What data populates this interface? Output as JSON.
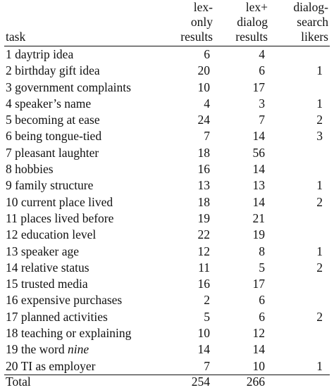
{
  "header": {
    "task": "task",
    "col1": [
      "lex-",
      "only",
      "results"
    ],
    "col2": [
      "lex+",
      "dialog",
      "results"
    ],
    "col3": [
      "dialog-",
      "search",
      "likers"
    ]
  },
  "rows": [
    {
      "num": "1",
      "task": "daytrip idea",
      "lex_only": "6",
      "lex_dialog": "4",
      "likers": ""
    },
    {
      "num": "2",
      "task": "birthday gift idea",
      "lex_only": "20",
      "lex_dialog": "6",
      "likers": "1"
    },
    {
      "num": "3",
      "task": "government complaints",
      "lex_only": "10",
      "lex_dialog": "17",
      "likers": ""
    },
    {
      "num": "4",
      "task": "speaker’s name",
      "lex_only": "4",
      "lex_dialog": "3",
      "likers": "1"
    },
    {
      "num": "5",
      "task": "becoming at ease",
      "lex_only": "24",
      "lex_dialog": "7",
      "likers": "2"
    },
    {
      "num": "6",
      "task": "being tongue-tied",
      "lex_only": "7",
      "lex_dialog": "14",
      "likers": "3"
    },
    {
      "num": "7",
      "task": "pleasant laughter",
      "lex_only": "18",
      "lex_dialog": "56",
      "likers": ""
    },
    {
      "num": "8",
      "task": "hobbies",
      "lex_only": "16",
      "lex_dialog": "14",
      "likers": ""
    },
    {
      "num": "9",
      "task": "family structure",
      "lex_only": "13",
      "lex_dialog": "13",
      "likers": "1"
    },
    {
      "num": "10",
      "task": "current place lived",
      "lex_only": "18",
      "lex_dialog": "14",
      "likers": "2"
    },
    {
      "num": "11",
      "task": "places lived before",
      "lex_only": "19",
      "lex_dialog": "21",
      "likers": ""
    },
    {
      "num": "12",
      "task": "education level",
      "lex_only": "22",
      "lex_dialog": "19",
      "likers": ""
    },
    {
      "num": "13",
      "task": "speaker age",
      "lex_only": "12",
      "lex_dialog": "8",
      "likers": "1"
    },
    {
      "num": "14",
      "task": "relative status",
      "lex_only": "11",
      "lex_dialog": "5",
      "likers": "2"
    },
    {
      "num": "15",
      "task": "trusted media",
      "lex_only": "16",
      "lex_dialog": "17",
      "likers": ""
    },
    {
      "num": "16",
      "task": "expensive purchases",
      "lex_only": "2",
      "lex_dialog": "6",
      "likers": ""
    },
    {
      "num": "17",
      "task": "planned activities",
      "lex_only": "5",
      "lex_dialog": "6",
      "likers": "2"
    },
    {
      "num": "18",
      "task": "teaching or explaining",
      "lex_only": "10",
      "lex_dialog": "12",
      "likers": ""
    },
    {
      "num": "19",
      "task": "the word ",
      "task_italic": "nine",
      "lex_only": "14",
      "lex_dialog": "14",
      "likers": ""
    },
    {
      "num": "20",
      "task": "TI as employer",
      "lex_only": "7",
      "lex_dialog": "10",
      "likers": "1"
    }
  ],
  "total": {
    "label": "Total",
    "lex_only": "254",
    "lex_dialog": "266",
    "likers": ""
  }
}
